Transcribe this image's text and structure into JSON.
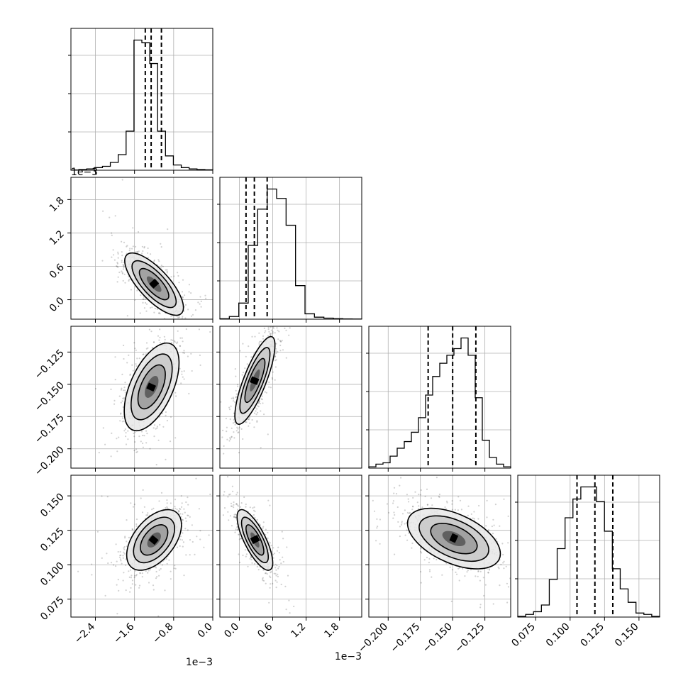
{
  "chart_data": {
    "type": "corner",
    "dimensions": 4,
    "parameters": [
      {
        "range": [
          -0.0029,
          0.0
        ],
        "ticks": [
          -0.0024,
          -0.0016,
          -0.0008,
          0.0
        ],
        "tick_labels": [
          "−2.4",
          "−1.6",
          "−0.8",
          "0.0"
        ],
        "offset": "1e−3"
      },
      {
        "range": [
          -0.00035,
          0.0022
        ],
        "ticks": [
          0.0,
          0.0006,
          0.0012,
          0.0018
        ],
        "tick_labels": [
          "0.0",
          "0.6",
          "1.2",
          "1.8"
        ],
        "offset": "1e−3"
      },
      {
        "range": [
          -0.215,
          -0.105
        ],
        "ticks": [
          -0.2,
          -0.175,
          -0.15,
          -0.125
        ],
        "tick_labels": [
          "−0.200",
          "−0.175",
          "−0.150",
          "−0.125"
        ],
        "offset": ""
      },
      {
        "range": [
          0.062,
          0.165
        ],
        "ticks": [
          0.075,
          0.1,
          0.125,
          0.15
        ],
        "tick_labels": [
          "0.075",
          "0.100",
          "0.125",
          "0.150"
        ],
        "offset": ""
      }
    ],
    "marginals": [
      {
        "counts": [
          0.2,
          0.5,
          1,
          2,
          3,
          6,
          12,
          30,
          100,
          98,
          82,
          30,
          11,
          4,
          2,
          1,
          0.5,
          0.3
        ],
        "quantiles": [
          -0.00138,
          -0.00126,
          -0.00105
        ]
      },
      {
        "counts": [
          0.3,
          2,
          12,
          55,
          82,
          97,
          90,
          70,
          25,
          4,
          1.5,
          0.8,
          0.4,
          0.2,
          0.1
        ],
        "quantiles": [
          0.00012,
          0.00027,
          0.0005
        ]
      },
      {
        "counts": [
          1,
          3,
          4,
          9,
          15,
          20,
          27,
          38,
          55,
          69,
          79,
          85,
          90,
          98,
          85,
          53,
          21,
          8,
          3,
          1
        ],
        "quantiles": [
          -0.169,
          -0.15,
          -0.132
        ]
      },
      {
        "counts": [
          0.5,
          2,
          4,
          9,
          28,
          51,
          74,
          88,
          97,
          97,
          86,
          64,
          36,
          21,
          11,
          3,
          2,
          0.5
        ],
        "quantiles": [
          0.105,
          0.118,
          0.131
        ]
      }
    ],
    "joint": [
      {
        "pair": [
          0,
          1
        ],
        "center": [
          -0.0012,
          0.00028
        ],
        "sigma": [
          0.0003,
          0.00028
        ],
        "corr": -0.75
      },
      {
        "pair": [
          0,
          2
        ],
        "center": [
          -0.00125,
          -0.152
        ],
        "sigma": [
          0.00028,
          0.017
        ],
        "corr": 0.55
      },
      {
        "pair": [
          1,
          2
        ],
        "center": [
          0.00028,
          -0.147
        ],
        "sigma": [
          0.00018,
          0.017
        ],
        "corr": 0.8
      },
      {
        "pair": [
          0,
          3
        ],
        "center": [
          -0.0012,
          0.118
        ],
        "sigma": [
          0.00028,
          0.011
        ],
        "corr": 0.5
      },
      {
        "pair": [
          1,
          3
        ],
        "center": [
          0.00028,
          0.118
        ],
        "sigma": [
          0.00016,
          0.011
        ],
        "corr": -0.75
      },
      {
        "pair": [
          2,
          3
        ],
        "center": [
          -0.149,
          0.119
        ],
        "sigma": [
          0.018,
          0.011
        ],
        "corr": -0.5
      }
    ],
    "contour_levels": [
      0.61,
      0.32,
      0.14
    ],
    "grid": true,
    "legend": "none",
    "title": "",
    "xlabel": "",
    "ylabel": ""
  }
}
